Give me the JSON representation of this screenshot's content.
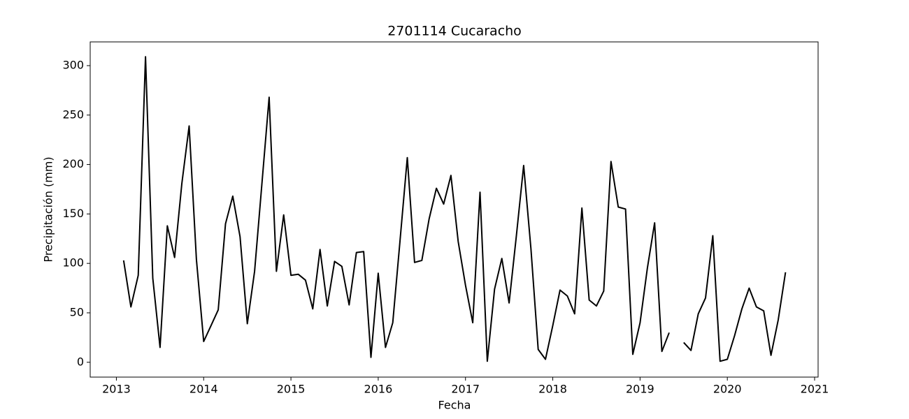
{
  "chart_data": {
    "type": "line",
    "title": "2701114 Cucaracho",
    "x_label": "Fecha",
    "y_label": "Precipitación (mm)",
    "x": [
      "2013-01",
      "2013-02",
      "2013-03",
      "2013-04",
      "2013-05",
      "2013-06",
      "2013-07",
      "2013-08",
      "2013-09",
      "2013-10",
      "2013-11",
      "2013-12",
      "2014-01",
      "2014-02",
      "2014-03",
      "2014-04",
      "2014-05",
      "2014-06",
      "2014-07",
      "2014-08",
      "2014-09",
      "2014-10",
      "2014-11",
      "2014-12",
      "2015-01",
      "2015-02",
      "2015-03",
      "2015-04",
      "2015-05",
      "2015-06",
      "2015-07",
      "2015-08",
      "2015-09",
      "2015-10",
      "2015-11",
      "2015-12",
      "2016-01",
      "2016-02",
      "2016-03",
      "2016-04",
      "2016-05",
      "2016-06",
      "2016-07",
      "2016-08",
      "2016-09",
      "2016-10",
      "2016-11",
      "2016-12",
      "2017-01",
      "2017-02",
      "2017-03",
      "2017-04",
      "2017-05",
      "2017-06",
      "2017-07",
      "2017-08",
      "2017-09",
      "2017-10",
      "2017-11",
      "2017-12",
      "2018-01",
      "2018-02",
      "2018-03",
      "2018-04",
      "2018-05",
      "2018-06",
      "2018-07",
      "2018-08",
      "2018-09",
      "2018-10",
      "2018-11",
      "2018-12",
      "2019-01",
      "2019-02",
      "2019-03",
      "2019-04",
      "2019-05",
      "2019-06",
      "2019-07",
      "2019-08",
      "2019-09",
      "2019-10",
      "2019-11",
      "2019-12",
      "2020-01",
      "2020-02",
      "2020-03",
      "2020-04",
      "2020-05",
      "2020-06",
      "2020-07",
      "2020-08"
    ],
    "values": [
      103,
      56,
      88,
      309,
      85,
      15,
      138,
      106,
      181,
      239,
      104,
      21,
      37,
      53,
      140,
      168,
      127,
      39,
      92,
      180,
      268,
      92,
      149,
      88,
      89,
      83,
      54,
      114,
      57,
      102,
      97,
      58,
      111,
      112,
      5,
      90,
      15,
      40,
      123,
      207,
      101,
      103,
      145,
      176,
      160,
      189,
      122,
      78,
      40,
      172,
      1,
      74,
      105,
      60,
      128,
      199,
      115,
      13,
      3,
      37,
      73,
      67,
      49,
      156,
      63,
      57,
      72,
      203,
      157,
      155,
      8,
      40,
      95,
      141,
      11,
      30,
      null,
      20,
      12,
      49,
      65,
      128,
      1,
      3,
      27,
      54,
      75,
      56,
      52,
      7,
      43,
      91
    ],
    "color": "#000000",
    "xlim": [
      2012.7,
      2021.04
    ],
    "xticks": [
      2013,
      2014,
      2015,
      2016,
      2017,
      2018,
      2019,
      2020,
      2021
    ],
    "ylim": [
      -15,
      324
    ],
    "yticks": [
      0,
      50,
      100,
      150,
      200,
      250,
      300
    ]
  }
}
